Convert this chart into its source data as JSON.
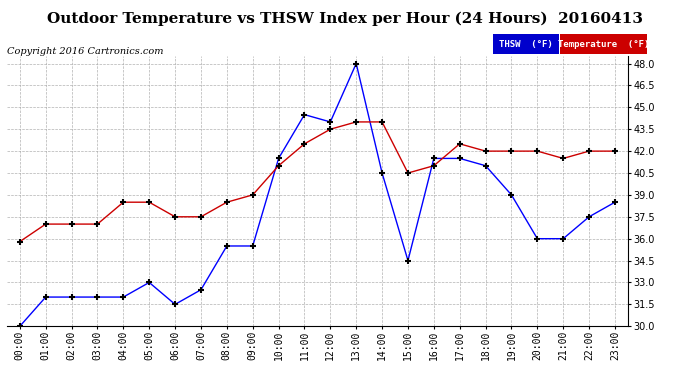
{
  "title": "Outdoor Temperature vs THSW Index per Hour (24 Hours)  20160413",
  "copyright": "Copyright 2016 Cartronics.com",
  "hours": [
    "00:00",
    "01:00",
    "02:00",
    "03:00",
    "04:00",
    "05:00",
    "06:00",
    "07:00",
    "08:00",
    "09:00",
    "10:00",
    "11:00",
    "12:00",
    "13:00",
    "14:00",
    "15:00",
    "16:00",
    "17:00",
    "18:00",
    "19:00",
    "20:00",
    "21:00",
    "22:00",
    "23:00"
  ],
  "thsw": [
    30.0,
    32.0,
    32.0,
    32.0,
    32.0,
    33.0,
    31.5,
    32.5,
    35.5,
    35.5,
    41.5,
    44.5,
    44.0,
    48.0,
    40.5,
    34.5,
    41.5,
    41.5,
    41.0,
    39.0,
    36.0,
    36.0,
    37.5,
    38.5
  ],
  "temperature": [
    35.8,
    37.0,
    37.0,
    37.0,
    38.5,
    38.5,
    37.5,
    37.5,
    38.5,
    39.0,
    41.0,
    42.5,
    43.5,
    44.0,
    44.0,
    40.5,
    41.0,
    42.5,
    42.0,
    42.0,
    42.0,
    41.5,
    42.0,
    42.0
  ],
  "ylim_min": 30.0,
  "ylim_max": 48.5,
  "yticks": [
    30.0,
    31.5,
    33.0,
    34.5,
    36.0,
    37.5,
    39.0,
    40.5,
    42.0,
    43.5,
    45.0,
    46.5,
    48.0
  ],
  "thsw_color": "#0000ff",
  "temp_color": "#cc0000",
  "background_color": "#ffffff",
  "grid_color": "#aaaaaa",
  "legend_thsw_bg": "#0000cc",
  "legend_temp_bg": "#cc0000",
  "title_fontsize": 11,
  "tick_fontsize": 7,
  "copyright_fontsize": 7
}
